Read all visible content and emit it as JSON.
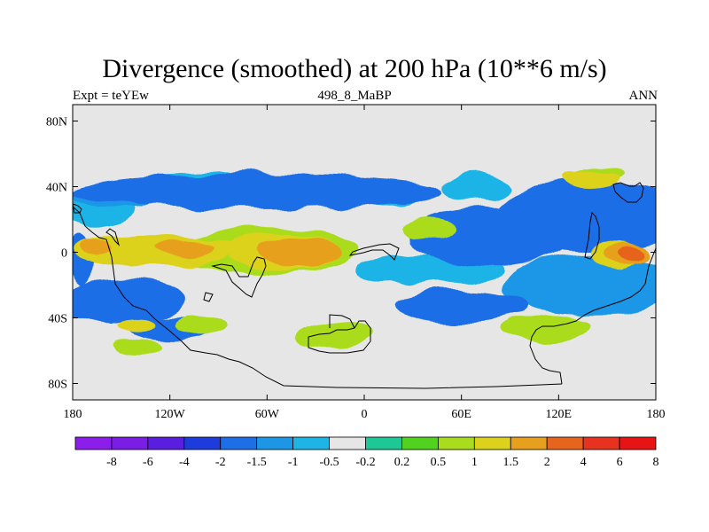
{
  "chart_data": {
    "type": "heatmap",
    "title": "Divergence (smoothed) at 200 hPa (10**6 m/s)",
    "subtitle_left": "Expt = teYEw",
    "subtitle_center": "498_8_MaBP",
    "subtitle_right": "ANN",
    "x_axis": {
      "range": [
        -180,
        180
      ],
      "ticks": [
        -180,
        -120,
        -60,
        0,
        60,
        120,
        180
      ],
      "tick_labels": [
        "180",
        "120W",
        "60W",
        "0",
        "60E",
        "120E",
        "180"
      ]
    },
    "y_axis": {
      "range": [
        -90,
        90
      ],
      "ticks": [
        80,
        40,
        0,
        -40,
        -80
      ],
      "tick_labels": [
        "80N",
        "40N",
        "0",
        "40S",
        "80S"
      ]
    },
    "colorbar": {
      "colors": [
        "#8c1eeb",
        "#7a1ee6",
        "#5a1ee0",
        "#1e3cdc",
        "#1e6ee6",
        "#1e96e6",
        "#1eb4e6",
        "#e6e6e6",
        "#1ec896",
        "#50d21e",
        "#aadc1e",
        "#dcd21e",
        "#e6a01e",
        "#e6641e",
        "#e6321e",
        "#e61414"
      ],
      "labels": [
        "-8",
        "-6",
        "-4",
        "-2",
        "-1.5",
        "-1",
        "-0.5",
        "-0.2",
        "0.2",
        "0.5",
        "1",
        "1.5",
        "2",
        "4",
        "6",
        "8"
      ]
    },
    "fields": [
      {
        "level": 8,
        "lon": 27,
        "lat": -12,
        "rx": 25,
        "ry": 4
      },
      {
        "level": 8,
        "lon": 162,
        "lat": 30,
        "rx": 15,
        "ry": 5
      },
      {
        "level": 8,
        "lon": 163,
        "lat": -28,
        "rx": 10,
        "ry": 4
      },
      {
        "level": 7,
        "lon": 33,
        "lat": -11,
        "rx": 33,
        "ry": 7
      },
      {
        "level": 7,
        "lon": 160,
        "lat": 28,
        "rx": 22,
        "ry": 8
      },
      {
        "level": 7,
        "lon": 158,
        "lat": -28,
        "rx": 16,
        "ry": 7
      },
      {
        "level": 7,
        "lon": -165,
        "lat": 25,
        "rx": 12,
        "ry": 6
      },
      {
        "level": 7,
        "lon": 10,
        "lat": 35,
        "rx": 8,
        "ry": 4
      },
      {
        "level": 7,
        "lon": -100,
        "lat": 40,
        "rx": 13,
        "ry": 5
      },
      {
        "level": 7,
        "lon": 100,
        "lat": 15,
        "rx": 10,
        "ry": 5
      },
      {
        "level": 6,
        "lon": 40,
        "lat": -10,
        "rx": 45,
        "ry": 10
      },
      {
        "level": 6,
        "lon": 155,
        "lat": 25,
        "rx": 35,
        "ry": 13
      },
      {
        "level": 6,
        "lon": 150,
        "lat": -27,
        "rx": 30,
        "ry": 11
      },
      {
        "level": 6,
        "lon": -100,
        "lat": 40,
        "rx": 30,
        "ry": 10
      },
      {
        "level": 6,
        "lon": -165,
        "lat": 25,
        "rx": 22,
        "ry": 10
      },
      {
        "level": 6,
        "lon": 15,
        "lat": 35,
        "rx": 20,
        "ry": 7
      },
      {
        "level": 6,
        "lon": 100,
        "lat": 17,
        "rx": 20,
        "ry": 9
      },
      {
        "level": 6,
        "lon": 70,
        "lat": 40,
        "rx": 20,
        "ry": 8
      },
      {
        "level": 6,
        "lon": -140,
        "lat": -30,
        "rx": 18,
        "ry": 8
      },
      {
        "level": 5,
        "lon": -20,
        "lat": 38,
        "rx": 28,
        "ry": 6
      },
      {
        "level": 5,
        "lon": -150,
        "lat": 35,
        "rx": 30,
        "ry": 8
      },
      {
        "level": 5,
        "lon": 140,
        "lat": -20,
        "rx": 55,
        "ry": 18
      },
      {
        "level": 5,
        "lon": -155,
        "lat": -30,
        "rx": 28,
        "ry": 10
      },
      {
        "level": 4,
        "lon": -65,
        "lat": 37,
        "rx": 115,
        "ry": 11
      },
      {
        "level": 4,
        "lon": 140,
        "lat": 22,
        "rx": 60,
        "ry": 22
      },
      {
        "level": 4,
        "lon": -150,
        "lat": -30,
        "rx": 40,
        "ry": 13
      },
      {
        "level": 4,
        "lon": -120,
        "lat": -47,
        "rx": 25,
        "ry": 7
      },
      {
        "level": 4,
        "lon": 60,
        "lat": -33,
        "rx": 40,
        "ry": 10
      },
      {
        "level": 4,
        "lon": 80,
        "lat": 10,
        "rx": 50,
        "ry": 18
      },
      {
        "level": 4,
        "lon": -175,
        "lat": -5,
        "rx": 8,
        "ry": 15
      },
      {
        "level": 10,
        "lon": -110,
        "lat": 3,
        "rx": 22,
        "ry": 6
      },
      {
        "level": 10,
        "lon": -60,
        "lat": 1,
        "rx": 55,
        "ry": 14
      },
      {
        "level": 10,
        "lon": -100,
        "lat": -45,
        "rx": 18,
        "ry": 6
      },
      {
        "level": 10,
        "lon": 40,
        "lat": 15,
        "rx": 15,
        "ry": 6
      },
      {
        "level": 10,
        "lon": 115,
        "lat": -45,
        "rx": 25,
        "ry": 7
      },
      {
        "level": 10,
        "lon": 155,
        "lat": 0,
        "rx": 12,
        "ry": 6
      },
      {
        "level": 10,
        "lon": 145,
        "lat": 48,
        "rx": 15,
        "ry": 4
      },
      {
        "level": 10,
        "lon": -140,
        "lat": -58,
        "rx": 15,
        "ry": 5
      },
      {
        "level": 10,
        "lon": -20,
        "lat": -50,
        "rx": 25,
        "ry": 8
      },
      {
        "level": 10,
        "lon": 110,
        "lat": -48,
        "rx": 25,
        "ry": 6
      },
      {
        "level": 11,
        "lon": -130,
        "lat": 1,
        "rx": 50,
        "ry": 10
      },
      {
        "level": 11,
        "lon": -50,
        "lat": 0,
        "rx": 35,
        "ry": 11
      },
      {
        "level": 11,
        "lon": 155,
        "lat": -2,
        "rx": 15,
        "ry": 8
      },
      {
        "level": 11,
        "lon": 140,
        "lat": 45,
        "rx": 18,
        "ry": 5
      },
      {
        "level": 11,
        "lon": -140,
        "lat": -45,
        "rx": 10,
        "ry": 4
      },
      {
        "level": 12,
        "lon": -40,
        "lat": 0,
        "rx": 25,
        "ry": 9
      },
      {
        "level": 12,
        "lon": -110,
        "lat": 3,
        "rx": 18,
        "ry": 5
      },
      {
        "level": 12,
        "lon": -165,
        "lat": 3,
        "rx": 10,
        "ry": 4
      },
      {
        "level": 12,
        "lon": 162,
        "lat": -1,
        "rx": 14,
        "ry": 6
      },
      {
        "level": 13,
        "lon": 165,
        "lat": -1,
        "rx": 8,
        "ry": 4
      }
    ]
  }
}
